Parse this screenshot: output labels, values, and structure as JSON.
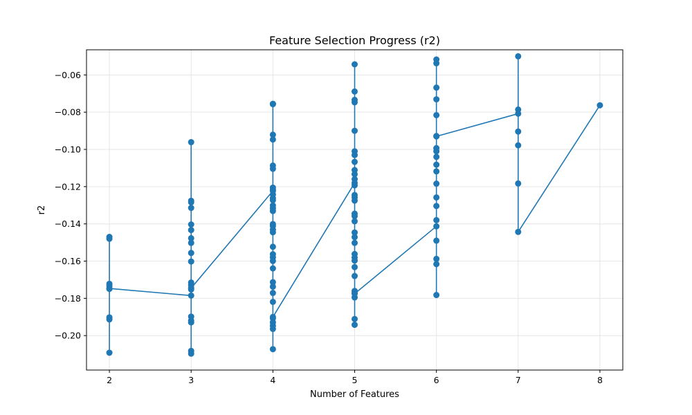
{
  "chart_data": {
    "type": "line",
    "title": "Feature Selection Progress (r2)",
    "xlabel": "Number of Features",
    "ylabel": "r2",
    "xlim": [
      1.72,
      8.28
    ],
    "ylim": [
      -0.2185,
      -0.0465
    ],
    "x_ticks": [
      2,
      3,
      4,
      5,
      6,
      7,
      8
    ],
    "y_ticks": [
      -0.2,
      -0.18,
      -0.16,
      -0.14,
      -0.12,
      -0.1,
      -0.08,
      -0.06
    ],
    "grid": true,
    "color": "#1f77b4",
    "series": [
      {
        "points": [
          [
            2,
            -0.147
          ],
          [
            2,
            -0.148
          ],
          [
            2,
            -0.1722
          ],
          [
            2,
            -0.1733
          ],
          [
            2,
            -0.1749
          ],
          [
            2,
            -0.1902
          ],
          [
            2,
            -0.1913
          ],
          [
            2,
            -0.2092
          ],
          [
            2,
            -0.1747
          ],
          [
            3,
            -0.1785
          ],
          [
            3,
            -0.0961
          ],
          [
            3,
            -0.1276
          ],
          [
            3,
            -0.1284
          ],
          [
            3,
            -0.1314
          ],
          [
            3,
            -0.1403
          ],
          [
            3,
            -0.1433
          ],
          [
            3,
            -0.1477
          ],
          [
            3,
            -0.1502
          ],
          [
            3,
            -0.1556
          ],
          [
            3,
            -0.1602
          ],
          [
            3,
            -0.1715
          ],
          [
            3,
            -0.1729
          ],
          [
            3,
            -0.1752
          ],
          [
            3,
            -0.1898
          ],
          [
            3,
            -0.1919
          ],
          [
            3,
            -0.1929
          ],
          [
            3,
            -0.2082
          ],
          [
            3,
            -0.2097
          ],
          [
            3,
            -0.1745
          ],
          [
            4,
            -0.1223
          ],
          [
            4,
            -0.0755
          ],
          [
            4,
            -0.0757
          ],
          [
            4,
            -0.0921
          ],
          [
            4,
            -0.0947
          ],
          [
            4,
            -0.1087
          ],
          [
            4,
            -0.1104
          ],
          [
            4,
            -0.1205
          ],
          [
            4,
            -0.1218
          ],
          [
            4,
            -0.1242
          ],
          [
            4,
            -0.1262
          ],
          [
            4,
            -0.1273
          ],
          [
            4,
            -0.1301
          ],
          [
            4,
            -0.1316
          ],
          [
            4,
            -0.1331
          ],
          [
            4,
            -0.1401
          ],
          [
            4,
            -0.1411
          ],
          [
            4,
            -0.1431
          ],
          [
            4,
            -0.1445
          ],
          [
            4,
            -0.1523
          ],
          [
            4,
            -0.1563
          ],
          [
            4,
            -0.158
          ],
          [
            4,
            -0.1599
          ],
          [
            4,
            -0.1639
          ],
          [
            4,
            -0.1713
          ],
          [
            4,
            -0.1737
          ],
          [
            4,
            -0.1771
          ],
          [
            4,
            -0.1819
          ],
          [
            4,
            -0.1907
          ],
          [
            4,
            -0.1929
          ],
          [
            4,
            -0.1947
          ],
          [
            4,
            -0.1964
          ],
          [
            4,
            -0.2073
          ],
          [
            4,
            -0.19
          ],
          [
            5,
            -0.118
          ],
          [
            5,
            -0.0543
          ],
          [
            5,
            -0.0689
          ],
          [
            5,
            -0.0734
          ],
          [
            5,
            -0.0747
          ],
          [
            5,
            -0.09
          ],
          [
            5,
            -0.101
          ],
          [
            5,
            -0.103
          ],
          [
            5,
            -0.1067
          ],
          [
            5,
            -0.1111
          ],
          [
            5,
            -0.1133
          ],
          [
            5,
            -0.116
          ],
          [
            5,
            -0.1193
          ],
          [
            5,
            -0.1245
          ],
          [
            5,
            -0.1258
          ],
          [
            5,
            -0.1275
          ],
          [
            5,
            -0.1345
          ],
          [
            5,
            -0.1358
          ],
          [
            5,
            -0.1386
          ],
          [
            5,
            -0.1446
          ],
          [
            5,
            -0.1471
          ],
          [
            5,
            -0.1502
          ],
          [
            5,
            -0.1562
          ],
          [
            5,
            -0.1581
          ],
          [
            5,
            -0.1597
          ],
          [
            5,
            -0.1632
          ],
          [
            5,
            -0.168
          ],
          [
            5,
            -0.176
          ],
          [
            5,
            -0.1771
          ],
          [
            5,
            -0.1795
          ],
          [
            5,
            -0.1911
          ],
          [
            5,
            -0.1942
          ],
          [
            5,
            -0.1775
          ],
          [
            6,
            -0.1413
          ],
          [
            6,
            -0.0517
          ],
          [
            6,
            -0.0537
          ],
          [
            6,
            -0.0668
          ],
          [
            6,
            -0.0731
          ],
          [
            6,
            -0.0816
          ],
          [
            6,
            -0.0928
          ],
          [
            6,
            -0.0993
          ],
          [
            6,
            -0.101
          ],
          [
            6,
            -0.104
          ],
          [
            6,
            -0.1082
          ],
          [
            6,
            -0.1118
          ],
          [
            6,
            -0.1184
          ],
          [
            6,
            -0.1258
          ],
          [
            6,
            -0.1304
          ],
          [
            6,
            -0.138
          ],
          [
            6,
            -0.149
          ],
          [
            6,
            -0.1588
          ],
          [
            6,
            -0.1616
          ],
          [
            6,
            -0.1782
          ],
          [
            6,
            -0.093
          ],
          [
            7,
            -0.0808
          ],
          [
            7,
            -0.05
          ],
          [
            7,
            -0.0786
          ],
          [
            7,
            -0.0904
          ],
          [
            7,
            -0.0978
          ],
          [
            7,
            -0.1183
          ],
          [
            7,
            -0.1443
          ],
          [
            8,
            -0.0763
          ]
        ]
      }
    ]
  }
}
